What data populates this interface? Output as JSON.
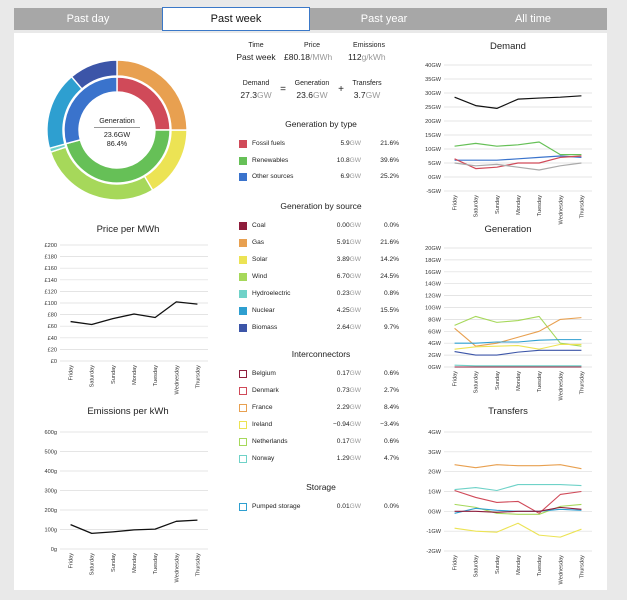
{
  "tabs": [
    {
      "label": "Past day",
      "active": false
    },
    {
      "label": "Past week",
      "active": true
    },
    {
      "label": "Past year",
      "active": false
    },
    {
      "label": "All time",
      "active": false
    }
  ],
  "summary": {
    "time_header": "Time",
    "time_value": "Past week",
    "price_header": "Price",
    "price_value": "£80.18",
    "price_unit": "/MWh",
    "emissions_header": "Emissions",
    "emissions_value": "112",
    "emissions_unit": "g/kWh",
    "demand_label": "Demand",
    "demand_value": "27.3",
    "demand_unit": "GW",
    "eq": "=",
    "generation_label": "Generation",
    "generation_value": "23.6",
    "generation_unit": "GW",
    "plus": "+",
    "transfers_label": "Transfers",
    "transfers_value": "3.7",
    "transfers_unit": "GW"
  },
  "donut": {
    "center_title": "Generation",
    "center_value": "23.6GW",
    "center_percent": "86.4%",
    "inner": [
      {
        "name": "Fossil fuels",
        "value": 21.6,
        "color": "#d04a59"
      },
      {
        "name": "Renewables",
        "value": 39.6,
        "color": "#66c057"
      },
      {
        "name": "Other sources",
        "value": 25.2,
        "color": "#3a73cc"
      }
    ],
    "outer": [
      {
        "name": "Coal",
        "value": 0.0,
        "color": "#8e1d3c"
      },
      {
        "name": "Gas",
        "value": 21.6,
        "color": "#e8a050"
      },
      {
        "name": "Solar",
        "value": 14.2,
        "color": "#ece354"
      },
      {
        "name": "Wind",
        "value": 24.5,
        "color": "#a6d85a"
      },
      {
        "name": "Hydroelectric",
        "value": 0.8,
        "color": "#6fd2c8"
      },
      {
        "name": "Nuclear",
        "value": 15.5,
        "color": "#2e9fd0"
      },
      {
        "name": "Biomass",
        "value": 9.7,
        "color": "#3c55a8"
      }
    ]
  },
  "generation_by_type": {
    "title": "Generation by type",
    "rows": [
      {
        "name": "Fossil fuels",
        "value": "5.9",
        "unit": "GW",
        "pct": "21.6%",
        "color": "#d04a59"
      },
      {
        "name": "Renewables",
        "value": "10.8",
        "unit": "GW",
        "pct": "39.6%",
        "color": "#66c057"
      },
      {
        "name": "Other sources",
        "value": "6.9",
        "unit": "GW",
        "pct": "25.2%",
        "color": "#3a73cc"
      }
    ]
  },
  "generation_by_source": {
    "title": "Generation by source",
    "rows": [
      {
        "name": "Coal",
        "value": "0.00",
        "unit": "GW",
        "pct": "0.0%",
        "color": "#8e1d3c"
      },
      {
        "name": "Gas",
        "value": "5.91",
        "unit": "GW",
        "pct": "21.6%",
        "color": "#e8a050"
      },
      {
        "name": "Solar",
        "value": "3.89",
        "unit": "GW",
        "pct": "14.2%",
        "color": "#ece354"
      },
      {
        "name": "Wind",
        "value": "6.70",
        "unit": "GW",
        "pct": "24.5%",
        "color": "#a6d85a"
      },
      {
        "name": "Hydroelectric",
        "value": "0.23",
        "unit": "GW",
        "pct": "0.8%",
        "color": "#6fd2c8"
      },
      {
        "name": "Nuclear",
        "value": "4.25",
        "unit": "GW",
        "pct": "15.5%",
        "color": "#2e9fd0"
      },
      {
        "name": "Biomass",
        "value": "2.64",
        "unit": "GW",
        "pct": "9.7%",
        "color": "#3c55a8"
      }
    ]
  },
  "interconnectors": {
    "title": "Interconnectors",
    "rows": [
      {
        "name": "Belgium",
        "value": "0.17",
        "unit": "GW",
        "pct": "0.6%",
        "color": "#8e1d3c"
      },
      {
        "name": "Denmark",
        "value": "0.73",
        "unit": "GW",
        "pct": "2.7%",
        "color": "#d04a59"
      },
      {
        "name": "France",
        "value": "2.29",
        "unit": "GW",
        "pct": "8.4%",
        "color": "#e8a050"
      },
      {
        "name": "Ireland",
        "value": "−0.94",
        "unit": "GW",
        "pct": "−3.4%",
        "color": "#ece354"
      },
      {
        "name": "Netherlands",
        "value": "0.17",
        "unit": "GW",
        "pct": "0.6%",
        "color": "#a6d85a"
      },
      {
        "name": "Norway",
        "value": "1.29",
        "unit": "GW",
        "pct": "4.7%",
        "color": "#6fd2c8"
      }
    ]
  },
  "storage": {
    "title": "Storage",
    "rows": [
      {
        "name": "Pumped storage",
        "value": "0.01",
        "unit": "GW",
        "pct": "0.0%",
        "color": "#2e9fd0"
      }
    ]
  },
  "chart_data": [
    {
      "id": "price",
      "type": "line",
      "title": "Price per MWh",
      "categories": [
        "Friday",
        "Saturday",
        "Sunday",
        "Monday",
        "Tuesday",
        "Wednesday",
        "Thursday"
      ],
      "yticks": [
        "£0",
        "£20",
        "£40",
        "£60",
        "£80",
        "£100",
        "£120",
        "£140",
        "£160",
        "£180",
        "£200"
      ],
      "ylim": [
        0,
        200
      ],
      "series": [
        {
          "color": "#111111",
          "values": [
            68,
            63,
            73,
            81,
            75,
            102,
            98
          ]
        }
      ]
    },
    {
      "id": "emissions",
      "type": "line",
      "title": "Emissions per kWh",
      "categories": [
        "Friday",
        "Saturday",
        "Sunday",
        "Monday",
        "Tuesday",
        "Wednesday",
        "Thursday"
      ],
      "yticks": [
        "0g",
        "100g",
        "200g",
        "300g",
        "400g",
        "500g",
        "600g"
      ],
      "ylim": [
        0,
        600
      ],
      "series": [
        {
          "color": "#111111",
          "values": [
            125,
            80,
            88,
            98,
            102,
            142,
            148
          ]
        }
      ]
    },
    {
      "id": "demand",
      "type": "line",
      "title": "Demand",
      "categories": [
        "Friday",
        "Saturday",
        "Sunday",
        "Monday",
        "Tuesday",
        "Wednesday",
        "Thursday"
      ],
      "yticks": [
        "-5GW",
        "0GW",
        "5GW",
        "10GW",
        "15GW",
        "20GW",
        "25GW",
        "30GW",
        "35GW",
        "40GW"
      ],
      "ylim": [
        -5,
        40
      ],
      "series": [
        {
          "color": "#111111",
          "values": [
            28.5,
            25.5,
            24.5,
            27.8,
            28.2,
            28.5,
            29
          ]
        },
        {
          "color": "#66c057",
          "values": [
            11,
            12,
            11,
            11.5,
            12.5,
            8,
            8
          ]
        },
        {
          "color": "#3a73cc",
          "values": [
            6,
            6,
            6,
            6.5,
            7,
            7.5,
            7
          ]
        },
        {
          "color": "#d04a59",
          "values": [
            6.5,
            3,
            3.5,
            5,
            5,
            7,
            7.5
          ]
        },
        {
          "color": "#aaaaaa",
          "values": [
            5,
            4,
            4.5,
            3.5,
            2.5,
            4,
            5
          ]
        }
      ]
    },
    {
      "id": "generation",
      "type": "line",
      "title": "Generation",
      "categories": [
        "Friday",
        "Saturday",
        "Sunday",
        "Monday",
        "Tuesday",
        "Wednesday",
        "Thursday"
      ],
      "yticks": [
        "0GW",
        "2GW",
        "4GW",
        "6GW",
        "8GW",
        "10GW",
        "12GW",
        "14GW",
        "16GW",
        "18GW",
        "20GW"
      ],
      "ylim": [
        0,
        20
      ],
      "series": [
        {
          "color": "#a6d85a",
          "values": [
            7,
            8.5,
            7.5,
            7.8,
            8.5,
            4,
            3.5
          ]
        },
        {
          "color": "#e8a050",
          "values": [
            6.5,
            3.5,
            4,
            5,
            6,
            8,
            8.3
          ]
        },
        {
          "color": "#2e9fd0",
          "values": [
            4,
            4,
            4.2,
            4.2,
            4.5,
            4.6,
            4.6
          ]
        },
        {
          "color": "#ece354",
          "values": [
            3,
            3.4,
            3.5,
            3.6,
            3,
            3.8,
            3.8
          ]
        },
        {
          "color": "#3c55a8",
          "values": [
            2.6,
            2,
            2,
            2.5,
            2.8,
            2.8,
            2.8
          ]
        },
        {
          "color": "#6fd2c8",
          "values": [
            0.3,
            0.2,
            0.2,
            0.2,
            0.2,
            0.2,
            0.2
          ]
        },
        {
          "color": "#8e1d3c",
          "values": [
            0,
            0,
            0,
            0,
            0,
            0,
            0
          ]
        }
      ]
    },
    {
      "id": "transfers",
      "type": "line",
      "title": "Transfers",
      "categories": [
        "Friday",
        "Saturday",
        "Sunday",
        "Monday",
        "Tuesday",
        "Wednesday",
        "Thursday"
      ],
      "yticks": [
        "-2GW",
        "-1GW",
        "0GW",
        "1GW",
        "2GW",
        "3GW",
        "4GW"
      ],
      "ylim": [
        -2,
        4
      ],
      "series": [
        {
          "color": "#e8a050",
          "values": [
            2.35,
            2.2,
            2.35,
            2.3,
            2.3,
            2.35,
            2.15
          ]
        },
        {
          "color": "#6fd2c8",
          "values": [
            1.1,
            1.2,
            1.05,
            1.35,
            1.35,
            1.35,
            1.3
          ]
        },
        {
          "color": "#d04a59",
          "values": [
            1.05,
            0.7,
            0.45,
            0.5,
            -0.1,
            0.85,
            1
          ]
        },
        {
          "color": "#a6d85a",
          "values": [
            0.35,
            0.2,
            -0.1,
            -0.15,
            -0.15,
            0.25,
            0.35
          ]
        },
        {
          "color": "#2e9fd0",
          "values": [
            -0.1,
            0.15,
            0.05,
            0,
            0,
            0.1,
            0.05
          ]
        },
        {
          "color": "#8e1d3c",
          "values": [
            0,
            0,
            -0.05,
            0,
            0,
            0.2,
            0.1
          ]
        },
        {
          "color": "#ece354",
          "values": [
            -0.85,
            -1,
            -1.05,
            -0.6,
            -1.2,
            -1.3,
            -0.9
          ]
        }
      ]
    }
  ]
}
